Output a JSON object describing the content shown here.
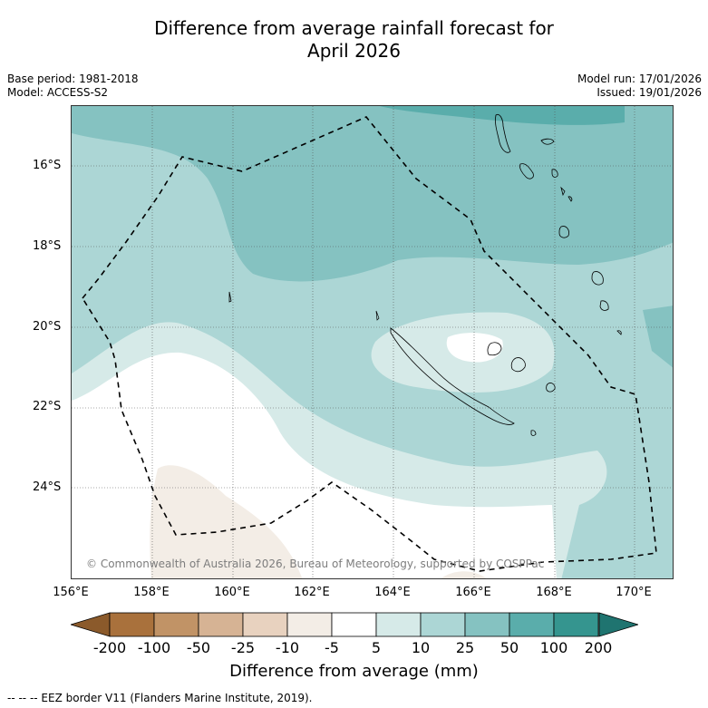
{
  "title": {
    "line1": "Difference from average rainfall forecast for",
    "line2": "April 2026"
  },
  "meta": {
    "base_period": "Base period: 1981-2018",
    "model": "Model: ACCESS-S2",
    "model_run": "Model run: 17/01/2026",
    "issued": "Issued: 19/01/2026"
  },
  "map": {
    "region": "New Caledonia / Vanuatu",
    "lat_labels": [
      "16°S",
      "18°S",
      "20°S",
      "22°S",
      "24°S"
    ],
    "lon_labels": [
      "156°E",
      "158°E",
      "160°E",
      "162°E",
      "164°E",
      "166°E",
      "168°E",
      "170°E"
    ],
    "copyright": "© Commonwealth of Australia 2026, Bureau of Meteorology, supported by COSPPac"
  },
  "colorbar": {
    "labels": [
      "-200",
      "-100",
      "-50",
      "-25",
      "-10",
      "-5",
      "5",
      "10",
      "25",
      "50",
      "100",
      "200"
    ],
    "colors": [
      "#8b5a2b",
      "#a9713c",
      "#c19366",
      "#d6b394",
      "#e8d2bf",
      "#f3ede6",
      "#ffffff",
      "#d6eae8",
      "#acd6d5",
      "#85c2c1",
      "#5aadab",
      "#35958f",
      "#1f7470"
    ],
    "title": "Difference from average (mm)"
  },
  "legend_note": "--  --  -- EEZ border V11 (Flanders Marine Institute, 2019)."
}
